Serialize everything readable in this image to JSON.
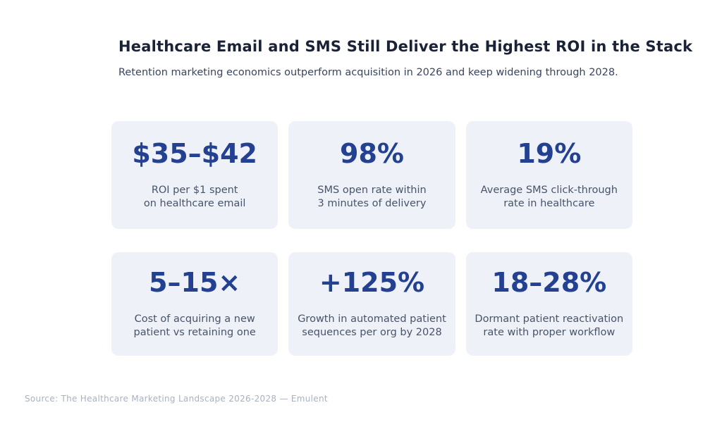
{
  "header": {
    "title": "Healthcare Email and SMS Still Deliver the Highest ROI in the Stack",
    "subtitle": "Retention marketing economics outperform acquisition in 2026 and keep widening through 2028."
  },
  "stats": [
    {
      "value": "$35–$42",
      "label": "ROI per $1 spent\non healthcare email"
    },
    {
      "value": "98%",
      "label": "SMS open rate within\n3 minutes of delivery"
    },
    {
      "value": "19%",
      "label": "Average SMS click-through\nrate in healthcare"
    },
    {
      "value": "5–15×",
      "label": "Cost of acquiring a new\npatient vs retaining one"
    },
    {
      "value": "+125%",
      "label": "Growth in automated patient\nsequences per org by 2028"
    },
    {
      "value": "18–28%",
      "label": "Dormant patient reactivation\nrate with proper workflow"
    }
  ],
  "source": "Source: The Healthcare Marketing Landscape 2026-2028 — Emulent",
  "colors": {
    "page_background": "#ffffff",
    "title": "#1a2238",
    "subtitle": "#39455e",
    "stat_value_blue": "#234091",
    "stat_label": "#475469",
    "card_background": "#eef1f7",
    "source_text": "#a8b1c2"
  },
  "chart_data": {
    "type": "table",
    "title": "Healthcare Email and SMS Still Deliver the Highest ROI in the Stack",
    "subtitle": "Retention marketing economics outperform acquisition in 2026 and keep widening through 2028.",
    "columns": [
      "value",
      "metric"
    ],
    "rows": [
      [
        "$35–$42",
        "ROI per $1 spent on healthcare email"
      ],
      [
        "98%",
        "SMS open rate within 3 minutes of delivery"
      ],
      [
        "19%",
        "Average SMS click-through rate in healthcare"
      ],
      [
        "5–15×",
        "Cost of acquiring a new patient vs retaining one"
      ],
      [
        "+125%",
        "Growth in automated patient sequences per org by 2028"
      ],
      [
        "18–28%",
        "Dormant patient reactivation rate with proper workflow"
      ]
    ],
    "layout": "2 rows x 3 columns of stat cards",
    "source": "Source: The Healthcare Marketing Landscape 2026-2028 — Emulent"
  }
}
